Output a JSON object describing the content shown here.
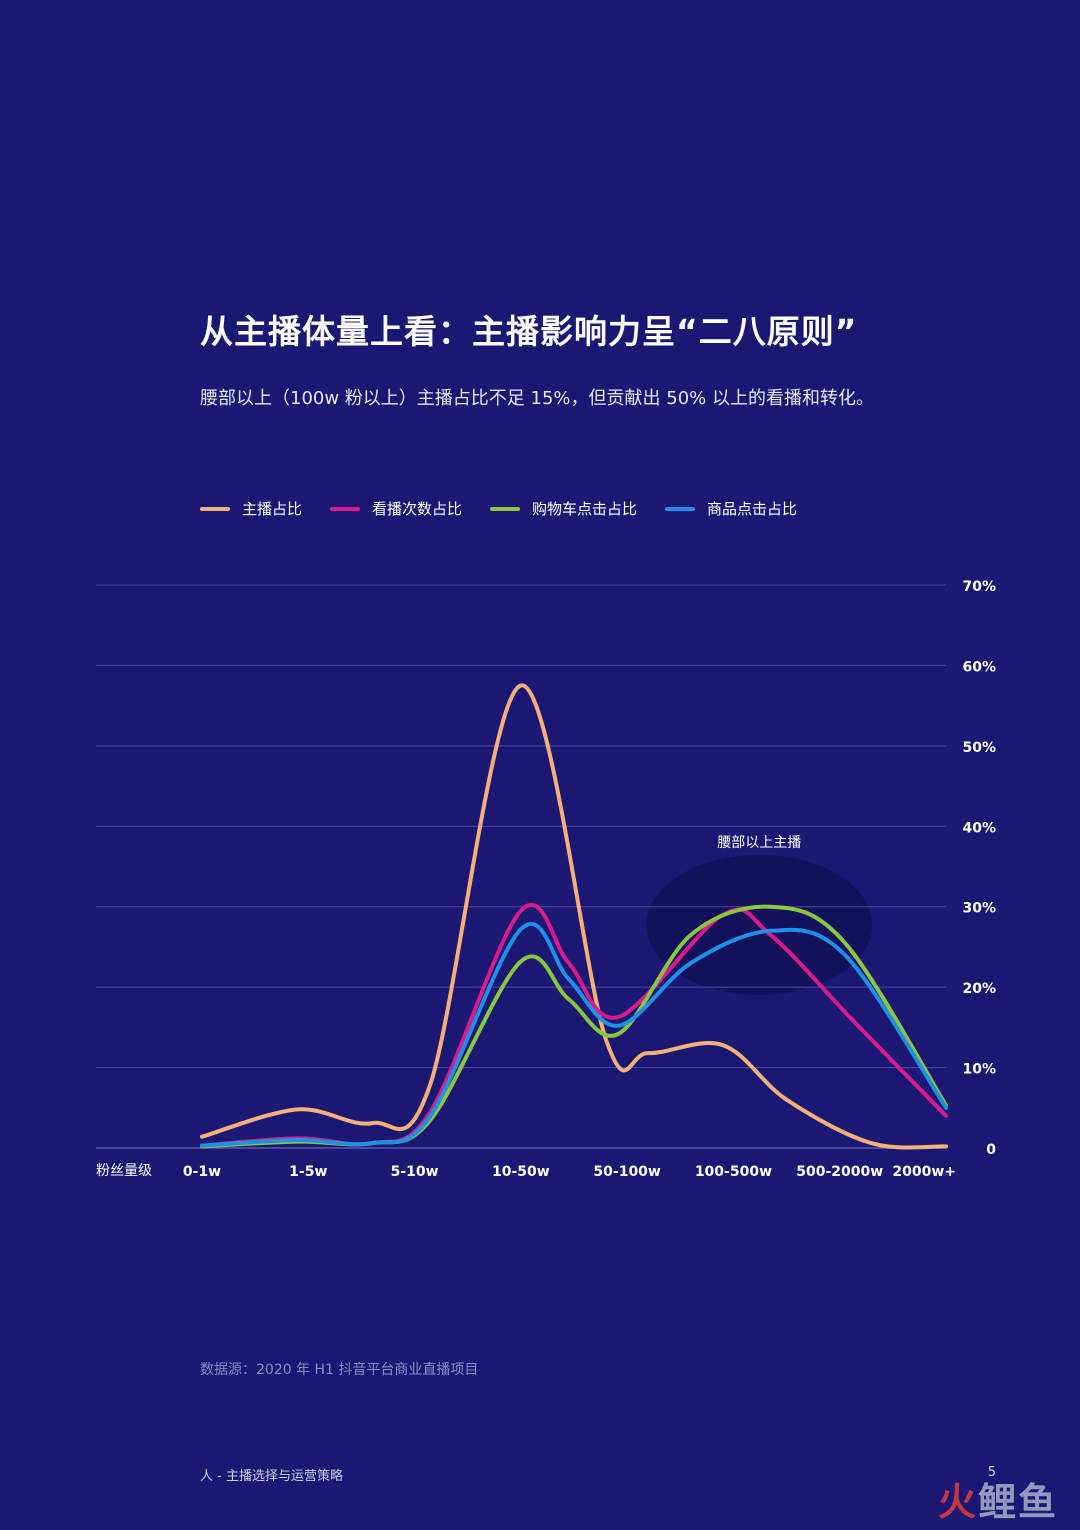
{
  "title": "从主播体量上看：主播影响力呈“二八原则”",
  "subtitle": "腰部以上（100w 粉以上）主播占比不足 15%，但贡献出 50% 以上的看播和转化。",
  "source": "数据源：2020 年 H1 抖音平台商业直播项目",
  "footer": "人 - 主播选择与运营策略",
  "page_number": "5",
  "watermark": {
    "part1": "火",
    "part2": "鲤鱼"
  },
  "chart_data": {
    "type": "line",
    "smooth": true,
    "categories": [
      "0-1w",
      "1-5w",
      "5-10w",
      "10-50w",
      "50-100w",
      "100-500w",
      "500-2000w",
      "2000w+"
    ],
    "xlabel": "粉丝量级",
    "ylabel": "",
    "ylim": [
      0,
      70
    ],
    "yticks": [
      0,
      10,
      20,
      30,
      40,
      50,
      60,
      70
    ],
    "ytick_labels": [
      "0",
      "10%",
      "20%",
      "30%",
      "40%",
      "50%",
      "60%",
      "70%"
    ],
    "grid": true,
    "y_axis_position": "right",
    "legend_position": "top-left",
    "series": [
      {
        "name": "主播占比",
        "color": "#f6b07a",
        "x": [
          0,
          0.9,
          1.6,
          2.15,
          3.0,
          3.8,
          4.2,
          4.9,
          5.5,
          6.3,
          7.0
        ],
        "values": [
          1.4,
          4.8,
          3.1,
          8.0,
          57.5,
          13.5,
          11.8,
          12.8,
          6.0,
          0.6,
          0.2
        ]
      },
      {
        "name": "看播次数占比",
        "color": "#d81b8f",
        "x": [
          0,
          0.9,
          1.6,
          2.15,
          3.0,
          3.45,
          3.92,
          4.9,
          5.35,
          6.15,
          7.0
        ],
        "values": [
          0.3,
          1.2,
          0.6,
          4.5,
          29.5,
          23.0,
          16.3,
          29.0,
          26.5,
          15.5,
          4.0
        ]
      },
      {
        "name": "购物车点击占比",
        "color": "#8cc63f",
        "x": [
          0,
          0.9,
          1.6,
          2.15,
          3.0,
          3.45,
          3.92,
          4.6,
          5.35,
          6.05,
          7.0
        ],
        "values": [
          0.2,
          0.8,
          0.6,
          3.5,
          23.2,
          18.5,
          14.2,
          26.5,
          30.0,
          25.5,
          5.3
        ]
      },
      {
        "name": "商品点击占比",
        "color": "#1e90e6",
        "x": [
          0,
          0.9,
          1.6,
          2.15,
          3.0,
          3.45,
          3.92,
          4.6,
          5.35,
          6.05,
          7.0
        ],
        "values": [
          0.3,
          1.0,
          0.6,
          4.0,
          27.2,
          21.0,
          15.2,
          23.0,
          27.0,
          24.0,
          5.0
        ]
      }
    ],
    "annotations": [
      {
        "text": "腰部以上主播",
        "x": 5.3,
        "y": 26.5,
        "shape": "ellipse-highlight"
      }
    ]
  }
}
